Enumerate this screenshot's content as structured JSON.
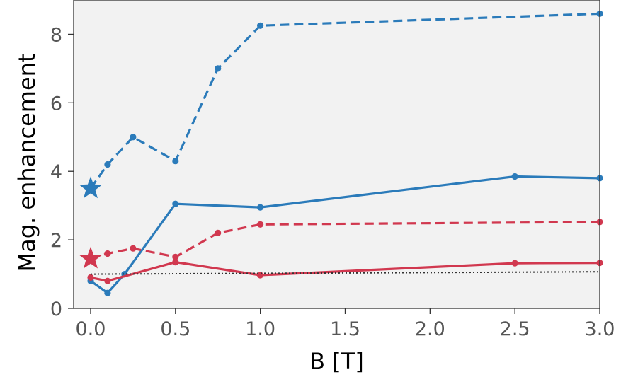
{
  "chart_data": {
    "type": "line",
    "xlabel": "B [T]",
    "ylabel": "Mag. enhancement",
    "xlim": [
      -0.1,
      3.0
    ],
    "ylim": [
      0,
      9.0
    ],
    "xticks": [
      0.0,
      0.5,
      1.0,
      1.5,
      2.0,
      2.5,
      3.0
    ],
    "xtick_labels": [
      "0.0",
      "0.5",
      "1.0",
      "1.5",
      "2.0",
      "2.5",
      "3.0"
    ],
    "yticks": [
      0,
      2,
      4,
      6,
      8
    ],
    "ytick_labels": [
      "0",
      "2",
      "4",
      "6",
      "8"
    ],
    "grid": false,
    "background": "#f2f2f2",
    "series": [
      {
        "color": "#2b7bba",
        "style": "dashed",
        "x": [
          0.0,
          0.1,
          0.25,
          0.5,
          0.75,
          1.0,
          3.0
        ],
        "y": [
          3.5,
          4.2,
          5.0,
          4.3,
          7.0,
          8.25,
          8.6
        ]
      },
      {
        "color": "#2b7bba",
        "style": "solid",
        "x": [
          0.0,
          0.1,
          0.2,
          0.5,
          1.0,
          2.5,
          3.0
        ],
        "y": [
          0.8,
          0.45,
          1.0,
          3.05,
          2.95,
          3.85,
          3.8
        ]
      },
      {
        "color": "#d1384f",
        "style": "dashed",
        "x": [
          0.0,
          0.1,
          0.25,
          0.5,
          0.75,
          1.0,
          3.0
        ],
        "y": [
          1.45,
          1.6,
          1.75,
          1.5,
          2.2,
          2.45,
          2.52
        ]
      },
      {
        "color": "#d1384f",
        "style": "solid",
        "x": [
          0.0,
          0.1,
          0.5,
          1.0,
          2.5,
          3.0
        ],
        "y": [
          0.9,
          0.8,
          1.35,
          0.97,
          1.32,
          1.33
        ]
      },
      {
        "color": "#333333",
        "style": "dotted",
        "x": [
          0.0,
          3.0
        ],
        "y": [
          1.0,
          1.07
        ]
      }
    ],
    "star_markers": [
      {
        "x": 0.0,
        "y": 3.5,
        "color": "#2b7bba"
      },
      {
        "x": 0.0,
        "y": 1.45,
        "color": "#d1384f"
      }
    ]
  }
}
